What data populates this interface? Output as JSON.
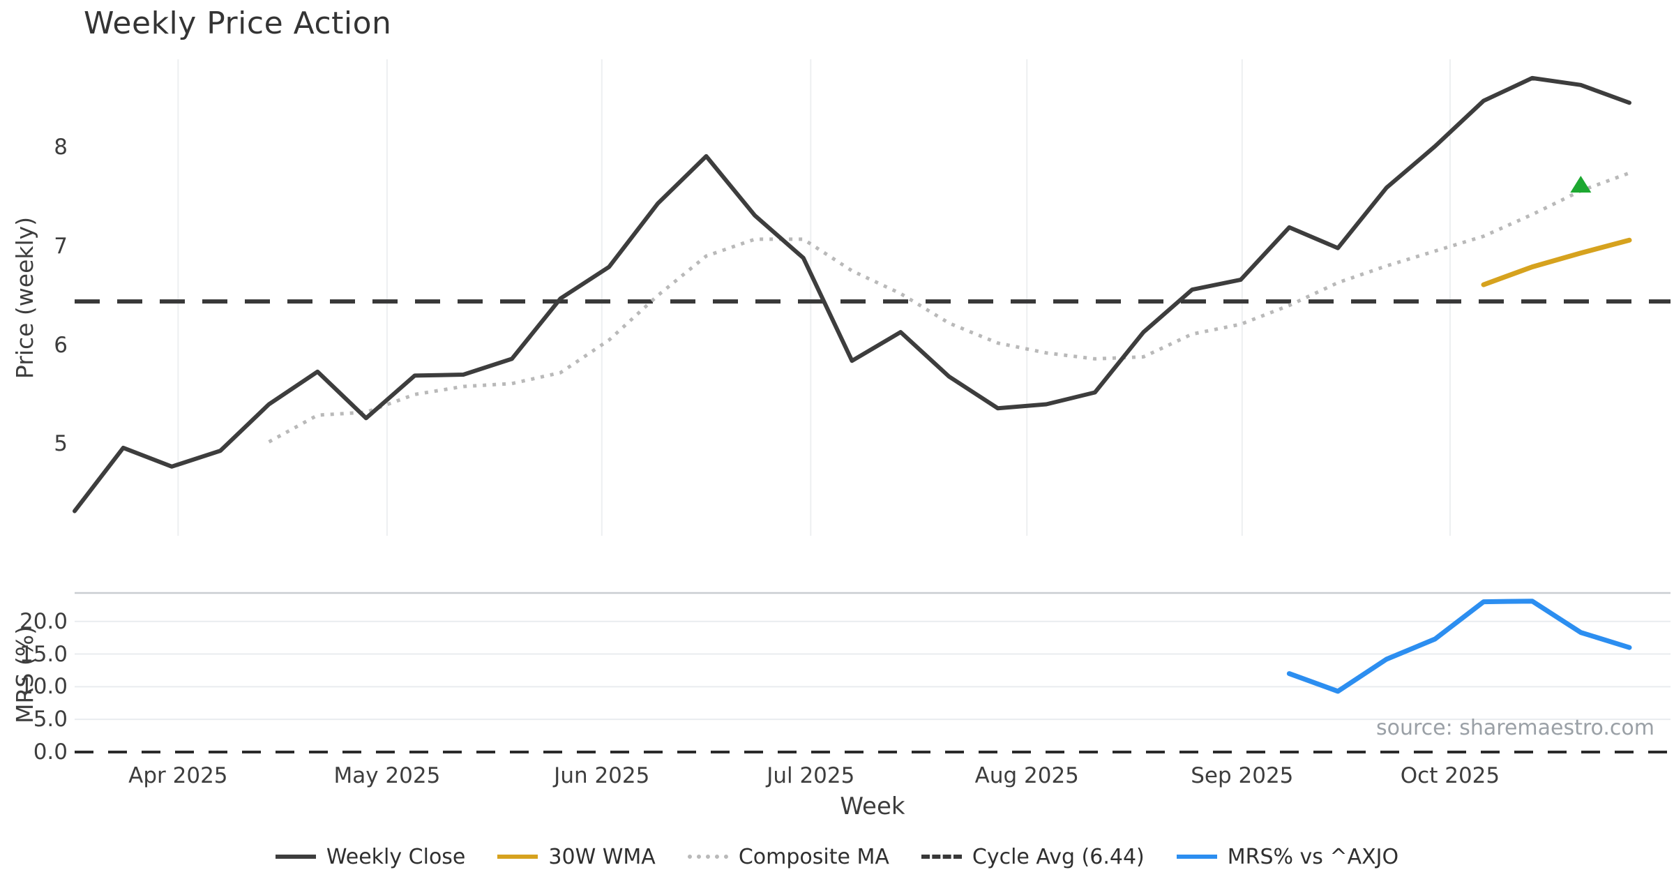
{
  "title": "Weekly Price Action",
  "source": "source: sharemaestro.com",
  "colors": {
    "weekly_close": "#3d3d3d",
    "wma": "#d6a21e",
    "composite": "#b9b9b9",
    "cycle": "#383838",
    "mrs": "#2c8ef0",
    "marker": "#1da831",
    "grid": "#edeff1",
    "mrs_grid": "#e9ecef",
    "separator": "#c9cdd1"
  },
  "x_axis": {
    "label": "Week",
    "ticks": [
      {
        "label": "Apr 2025",
        "week": 2.13
      },
      {
        "label": "May 2025",
        "week": 6.43
      },
      {
        "label": "Jun 2025",
        "week": 10.85
      },
      {
        "label": "Jul 2025",
        "week": 15.15
      },
      {
        "label": "Aug 2025",
        "week": 19.6
      },
      {
        "label": "Sep 2025",
        "week": 24.03
      },
      {
        "label": "Oct 2025",
        "week": 28.31
      }
    ]
  },
  "price_axis": {
    "label": "Price (weekly)",
    "ticks": [
      {
        "label": "5",
        "value": 5
      },
      {
        "label": "6",
        "value": 6
      },
      {
        "label": "7",
        "value": 7
      },
      {
        "label": "8",
        "value": 8
      }
    ]
  },
  "mrs_axis": {
    "label": "MRS (%)",
    "ticks": [
      {
        "label": "0.0",
        "value": 0,
        "grid": false
      },
      {
        "label": "5.0",
        "value": 5,
        "grid": true
      },
      {
        "label": "10.0",
        "value": 10,
        "grid": true
      },
      {
        "label": "15.0",
        "value": 15,
        "grid": true
      },
      {
        "label": "20.0",
        "value": 20,
        "grid": true
      }
    ]
  },
  "legend": [
    {
      "label": "Weekly Close",
      "color_key": "weekly_close",
      "style": "solid"
    },
    {
      "label": "30W WMA",
      "color_key": "wma",
      "style": "solid"
    },
    {
      "label": "Composite MA",
      "color_key": "composite",
      "style": "dotted"
    },
    {
      "label": "Cycle Avg (6.44)",
      "color_key": "cycle",
      "style": "dashed"
    },
    {
      "label": "MRS% vs ^AXJO",
      "color_key": "mrs",
      "style": "solid"
    }
  ],
  "chart_data": [
    {
      "type": "line",
      "panel": "price",
      "title": "Weekly Price Action",
      "xlabel": "Week",
      "ylabel": "Price (weekly)",
      "x_unit": "weekly points, mid-Mar 2025 to late Oct 2025",
      "n_weeks": 33,
      "ylim": [
        4.07,
        8.89
      ],
      "grid": "vertical-months-only",
      "cycle_avg": 6.44,
      "series": [
        {
          "name": "Weekly Close",
          "style": "solid",
          "width": 6,
          "color_key": "weekly_close",
          "start_week": 0,
          "values": [
            4.32,
            4.96,
            4.77,
            4.93,
            5.4,
            5.73,
            5.26,
            5.69,
            5.7,
            5.86,
            6.47,
            6.79,
            7.43,
            7.91,
            7.31,
            6.88,
            5.84,
            6.13,
            5.68,
            5.36,
            5.4,
            5.52,
            6.13,
            6.56,
            6.66,
            7.19,
            6.98,
            7.59,
            8.01,
            8.47,
            8.7,
            8.63,
            8.45
          ]
        },
        {
          "name": "Composite MA",
          "style": "dotted",
          "width": 5,
          "color_key": "composite",
          "start_week": 4,
          "values": [
            5.02,
            5.29,
            5.32,
            5.5,
            5.58,
            5.61,
            5.72,
            6.05,
            6.5,
            6.9,
            7.07,
            7.07,
            6.75,
            6.52,
            6.22,
            6.02,
            5.92,
            5.86,
            5.88,
            6.11,
            6.21,
            6.4,
            6.63,
            6.8,
            6.95,
            7.1,
            7.32,
            7.56,
            7.74
          ]
        },
        {
          "name": "30W WMA",
          "style": "solid",
          "width": 7,
          "color_key": "wma",
          "start_week": 29,
          "values": [
            6.61,
            6.79,
            6.93,
            7.06
          ]
        }
      ],
      "marker": {
        "shape": "triangle-up",
        "color_key": "marker",
        "week": 31,
        "value": 7.62
      }
    },
    {
      "type": "line",
      "panel": "mrs",
      "ylabel": "MRS (%)",
      "ylim": [
        -0.75,
        24.35
      ],
      "grid": "horizontal-only",
      "zero_line": 0.0,
      "series": [
        {
          "name": "MRS% vs ^AXJO",
          "style": "solid",
          "width": 7,
          "color_key": "mrs",
          "start_week": 25,
          "values": [
            12.0,
            9.3,
            14.2,
            17.3,
            23.0,
            23.1,
            18.3,
            16.0
          ]
        }
      ]
    }
  ]
}
